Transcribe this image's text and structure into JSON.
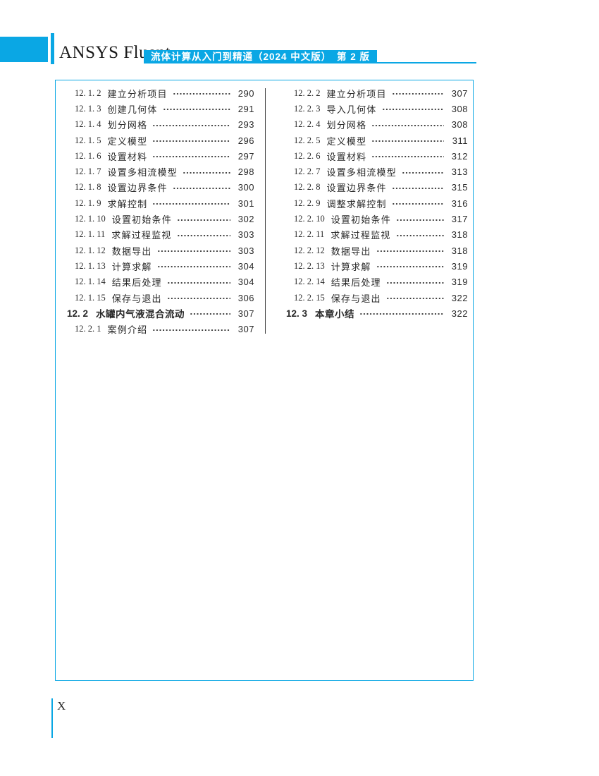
{
  "colors": {
    "accent_blue": "#0aa7e4",
    "text": "#292929",
    "divider": "#3d3d3d"
  },
  "header": {
    "brand": "ANSYS Fluent",
    "badge": "流体计算从入门到精通（2024 中文版）　第 2 版"
  },
  "toc": {
    "left_column": {
      "entries": [
        {
          "num": "12. 1. 2",
          "title": "建立分析项目",
          "page": "290",
          "level": "sub"
        },
        {
          "num": "12. 1. 3",
          "title": "创建几何体",
          "page": "291",
          "level": "sub"
        },
        {
          "num": "12. 1. 4",
          "title": "划分网格",
          "page": "293",
          "level": "sub"
        },
        {
          "num": "12. 1. 5",
          "title": "定义模型",
          "page": "296",
          "level": "sub"
        },
        {
          "num": "12. 1. 6",
          "title": "设置材料",
          "page": "297",
          "level": "sub"
        },
        {
          "num": "12. 1. 7",
          "title": "设置多相流模型",
          "page": "298",
          "level": "sub"
        },
        {
          "num": "12. 1. 8",
          "title": "设置边界条件",
          "page": "300",
          "level": "sub"
        },
        {
          "num": "12. 1. 9",
          "title": "求解控制",
          "page": "301",
          "level": "sub"
        },
        {
          "num": "12. 1. 10",
          "title": "设置初始条件",
          "page": "302",
          "level": "sub"
        },
        {
          "num": "12. 1. 11",
          "title": "求解过程监视",
          "page": "303",
          "level": "sub"
        },
        {
          "num": "12. 1. 12",
          "title": "数据导出",
          "page": "303",
          "level": "sub"
        },
        {
          "num": "12. 1. 13",
          "title": "计算求解",
          "page": "304",
          "level": "sub"
        },
        {
          "num": "12. 1. 14",
          "title": "结果后处理",
          "page": "304",
          "level": "sub"
        },
        {
          "num": "12. 1. 15",
          "title": "保存与退出",
          "page": "306",
          "level": "sub"
        },
        {
          "num": "12. 2",
          "title": "水罐内气液混合流动",
          "page": "307",
          "level": "section"
        },
        {
          "num": "12. 2. 1",
          "title": "案例介绍",
          "page": "307",
          "level": "sub"
        }
      ]
    },
    "right_column": {
      "entries": [
        {
          "num": "12. 2. 2",
          "title": "建立分析项目",
          "page": "307",
          "level": "sub"
        },
        {
          "num": "12. 2. 3",
          "title": "导入几何体",
          "page": "308",
          "level": "sub"
        },
        {
          "num": "12. 2. 4",
          "title": "划分网格",
          "page": "308",
          "level": "sub"
        },
        {
          "num": "12. 2. 5",
          "title": "定义模型",
          "page": "311",
          "level": "sub"
        },
        {
          "num": "12. 2. 6",
          "title": "设置材料",
          "page": "312",
          "level": "sub"
        },
        {
          "num": "12. 2. 7",
          "title": "设置多相流模型",
          "page": "313",
          "level": "sub"
        },
        {
          "num": "12. 2. 8",
          "title": "设置边界条件",
          "page": "315",
          "level": "sub"
        },
        {
          "num": "12. 2. 9",
          "title": "调整求解控制",
          "page": "316",
          "level": "sub"
        },
        {
          "num": "12. 2. 10",
          "title": "设置初始条件",
          "page": "317",
          "level": "sub"
        },
        {
          "num": "12. 2. 11",
          "title": "求解过程监视",
          "page": "318",
          "level": "sub"
        },
        {
          "num": "12. 2. 12",
          "title": "数据导出",
          "page": "318",
          "level": "sub"
        },
        {
          "num": "12. 2. 13",
          "title": "计算求解",
          "page": "319",
          "level": "sub"
        },
        {
          "num": "12. 2. 14",
          "title": "结果后处理",
          "page": "319",
          "level": "sub"
        },
        {
          "num": "12. 2. 15",
          "title": "保存与退出",
          "page": "322",
          "level": "sub"
        },
        {
          "num": "12. 3",
          "title": "本章小结",
          "page": "322",
          "level": "section"
        }
      ]
    }
  },
  "footer": {
    "page_number": "X"
  }
}
